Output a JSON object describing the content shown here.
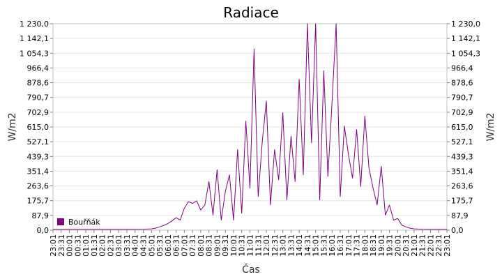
{
  "chart_data": {
    "type": "line",
    "title": "Radiace",
    "xlabel": "Čas",
    "ylabel": "W/m2",
    "ylim": [
      0,
      1230
    ],
    "y_ticks": [
      "0,0",
      "87,9",
      "175,7",
      "263,6",
      "351,4",
      "439,3",
      "527,1",
      "615,0",
      "702,9",
      "790,7",
      "878,6",
      "966,4",
      "1 054,3",
      "1 142,1",
      "1 230,0"
    ],
    "x_ticks": [
      "23:01",
      "23:31",
      "00:01",
      "00:31",
      "01:01",
      "01:31",
      "02:01",
      "02:31",
      "03:01",
      "03:31",
      "04:01",
      "04:31",
      "05:01",
      "05:31",
      "06:01",
      "06:31",
      "07:01",
      "07:31",
      "08:01",
      "08:31",
      "09:01",
      "09:31",
      "10:01",
      "10:31",
      "11:01",
      "11:31",
      "12:01",
      "12:31",
      "13:01",
      "13:31",
      "14:01",
      "14:31",
      "15:01",
      "15:31",
      "16:01",
      "16:31",
      "17:01",
      "17:31",
      "18:01",
      "18:31",
      "19:01",
      "19:31",
      "20:01",
      "20:31",
      "21:01",
      "21:31",
      "22:01",
      "22:31",
      "23:01"
    ],
    "grid": true,
    "legend_position": "bottom-left",
    "series": [
      {
        "name": "Bouřňák",
        "color": "#800080",
        "x": [
          "23:01",
          "23:31",
          "00:01",
          "00:31",
          "01:01",
          "01:31",
          "02:01",
          "02:31",
          "03:01",
          "03:31",
          "04:01",
          "04:31",
          "05:01",
          "05:16",
          "05:31",
          "05:46",
          "06:01",
          "06:16",
          "06:31",
          "06:46",
          "07:01",
          "07:16",
          "07:31",
          "07:46",
          "08:01",
          "08:16",
          "08:31",
          "08:46",
          "09:01",
          "09:16",
          "09:31",
          "09:46",
          "10:01",
          "10:16",
          "10:31",
          "10:46",
          "11:01",
          "11:16",
          "11:31",
          "11:46",
          "12:01",
          "12:16",
          "12:31",
          "12:46",
          "13:01",
          "13:16",
          "13:31",
          "13:46",
          "14:01",
          "14:16",
          "14:31",
          "14:46",
          "15:01",
          "15:16",
          "15:31",
          "15:46",
          "16:01",
          "16:16",
          "16:31",
          "16:46",
          "17:01",
          "17:16",
          "17:31",
          "17:46",
          "18:01",
          "18:16",
          "18:31",
          "18:46",
          "19:01",
          "19:16",
          "19:31",
          "19:46",
          "20:01",
          "20:16",
          "20:31",
          "20:46",
          "21:01",
          "21:31",
          "22:01",
          "22:31",
          "23:01"
        ],
        "values": [
          5,
          5,
          5,
          5,
          5,
          5,
          5,
          5,
          5,
          5,
          5,
          6,
          8,
          12,
          20,
          28,
          40,
          55,
          75,
          60,
          130,
          170,
          160,
          175,
          120,
          150,
          290,
          90,
          360,
          60,
          230,
          330,
          60,
          480,
          100,
          650,
          250,
          1080,
          200,
          530,
          770,
          150,
          480,
          300,
          700,
          180,
          560,
          290,
          900,
          330,
          1230,
          520,
          1230,
          180,
          950,
          320,
          760,
          1230,
          200,
          620,
          450,
          310,
          600,
          260,
          680,
          370,
          250,
          150,
          380,
          90,
          150,
          60,
          70,
          30,
          20,
          12,
          8,
          6,
          5,
          5,
          5
        ]
      }
    ]
  }
}
